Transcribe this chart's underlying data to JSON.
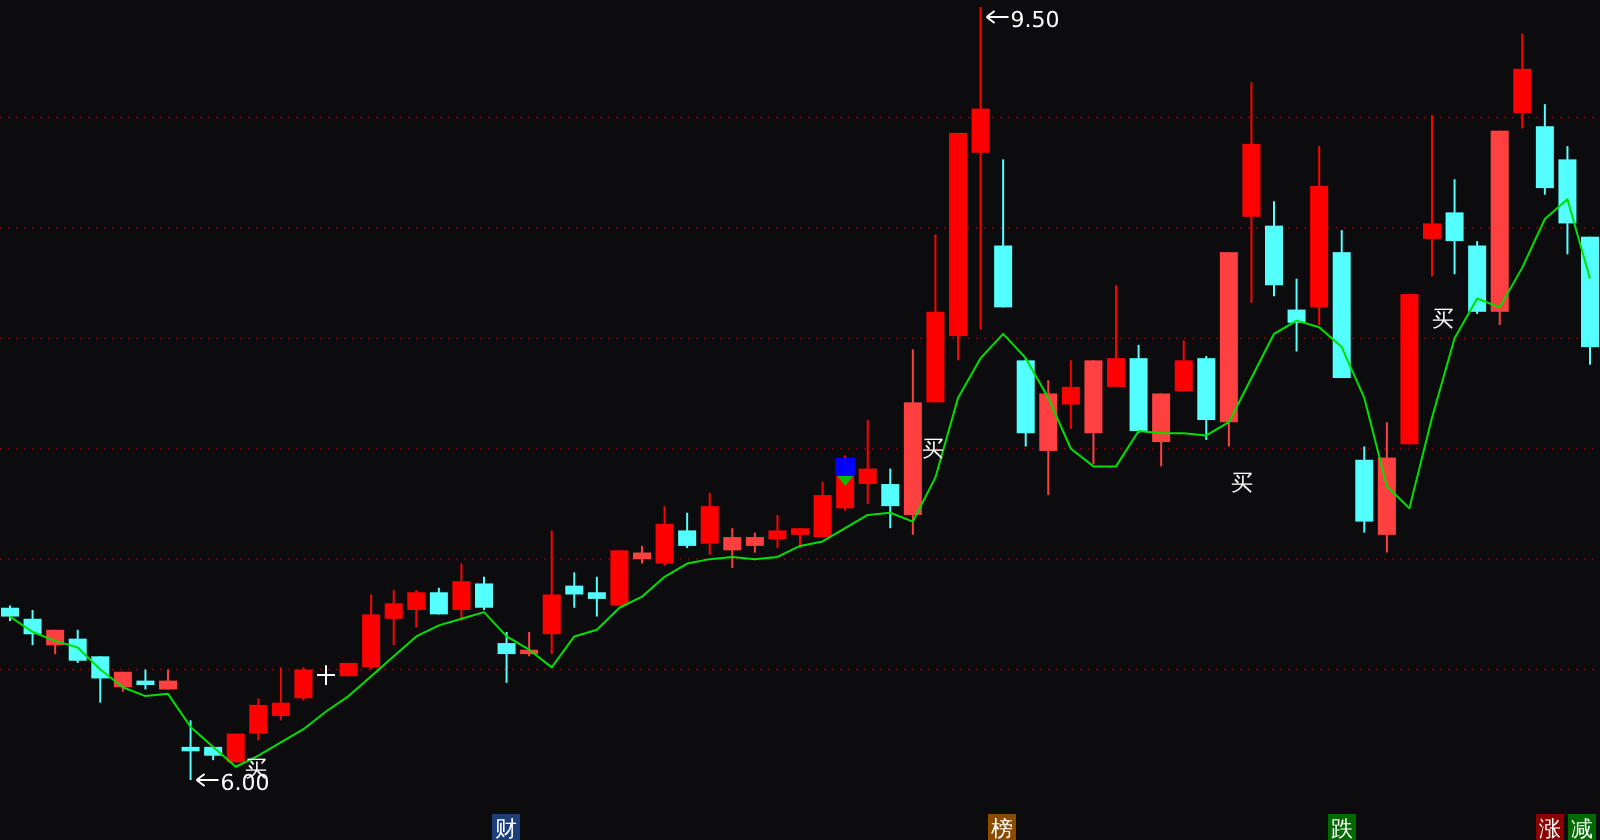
{
  "chart_data": {
    "type": "candlestick",
    "categories": [
      null,
      null,
      null,
      null,
      null,
      null,
      null,
      null,
      null,
      null,
      null,
      null,
      null,
      null,
      null,
      null,
      null,
      null,
      null,
      null,
      null,
      null,
      null,
      null,
      null,
      null,
      null,
      null,
      null,
      null,
      null,
      null,
      null,
      null,
      null,
      null,
      null,
      null,
      null,
      null,
      null,
      null,
      null,
      null,
      null,
      null,
      null,
      null,
      null,
      null,
      null,
      null,
      null,
      null,
      null,
      null,
      null,
      null,
      null,
      null,
      null,
      null,
      null,
      null,
      null,
      null,
      null,
      null,
      null,
      null,
      null
    ],
    "ohlc": [
      [
        6.78,
        6.79,
        6.72,
        6.74
      ],
      [
        6.73,
        6.77,
        6.61,
        6.66
      ],
      [
        6.61,
        6.68,
        6.57,
        6.68
      ],
      [
        6.64,
        6.68,
        6.53,
        6.54
      ],
      [
        6.56,
        6.56,
        6.35,
        6.46
      ],
      [
        6.42,
        6.49,
        6.4,
        6.49
      ],
      [
        6.45,
        6.5,
        6.41,
        6.43
      ],
      [
        6.41,
        6.5,
        6.41,
        6.45
      ],
      [
        6.15,
        6.27,
        6.0,
        6.13
      ],
      [
        6.15,
        6.15,
        6.09,
        6.11
      ],
      [
        6.08,
        6.21,
        6.08,
        6.21
      ],
      [
        6.21,
        6.37,
        6.18,
        6.34
      ],
      [
        6.29,
        6.51,
        6.27,
        6.35
      ],
      [
        6.37,
        6.51,
        6.36,
        6.5
      ],
      [
        6.48,
        6.52,
        6.43,
        6.48
      ],
      [
        6.47,
        6.53,
        6.47,
        6.53
      ],
      [
        6.51,
        6.84,
        6.5,
        6.75
      ],
      [
        6.73,
        6.86,
        6.61,
        6.8
      ],
      [
        6.77,
        6.86,
        6.69,
        6.85
      ],
      [
        6.85,
        6.87,
        6.75,
        6.75
      ],
      [
        6.77,
        6.98,
        6.72,
        6.9
      ],
      [
        6.89,
        6.92,
        6.77,
        6.78
      ],
      [
        6.62,
        6.67,
        6.44,
        6.57
      ],
      [
        6.57,
        6.67,
        6.56,
        6.59
      ],
      [
        6.66,
        7.13,
        6.57,
        6.84
      ],
      [
        6.88,
        6.94,
        6.78,
        6.84
      ],
      [
        6.85,
        6.92,
        6.74,
        6.82
      ],
      [
        6.79,
        7.04,
        6.79,
        7.04
      ],
      [
        7.0,
        7.06,
        6.98,
        7.03
      ],
      [
        6.98,
        7.24,
        6.97,
        7.16
      ],
      [
        7.13,
        7.21,
        7.05,
        7.06
      ],
      [
        7.07,
        7.3,
        7.02,
        7.24
      ],
      [
        7.04,
        7.14,
        6.96,
        7.1
      ],
      [
        7.06,
        7.12,
        7.03,
        7.1
      ],
      [
        7.09,
        7.2,
        7.05,
        7.13
      ],
      [
        7.11,
        7.14,
        7.05,
        7.14
      ],
      [
        7.1,
        7.35,
        7.1,
        7.29
      ],
      [
        7.23,
        7.47,
        7.22,
        7.39
      ],
      [
        7.34,
        7.63,
        7.25,
        7.41
      ],
      [
        7.34,
        7.41,
        7.14,
        7.24
      ],
      [
        7.2,
        7.95,
        7.11,
        7.71
      ],
      [
        7.71,
        8.47,
        7.71,
        8.12
      ],
      [
        8.01,
        8.93,
        7.9,
        8.93
      ],
      [
        8.84,
        9.5,
        8.04,
        9.04
      ],
      [
        8.42,
        8.81,
        8.14,
        8.14
      ],
      [
        7.9,
        7.91,
        7.51,
        7.57
      ],
      [
        7.49,
        7.81,
        7.29,
        7.75
      ],
      [
        7.7,
        7.9,
        7.59,
        7.78
      ],
      [
        7.57,
        7.9,
        7.43,
        7.9
      ],
      [
        7.78,
        8.24,
        7.78,
        7.91
      ],
      [
        7.91,
        7.97,
        7.57,
        7.58
      ],
      [
        7.53,
        7.75,
        7.42,
        7.75
      ],
      [
        7.76,
        7.99,
        7.76,
        7.9
      ],
      [
        7.91,
        7.92,
        7.54,
        7.63
      ],
      [
        7.62,
        8.39,
        7.51,
        8.39
      ],
      [
        8.55,
        9.16,
        8.16,
        8.88
      ],
      [
        8.51,
        8.62,
        8.19,
        8.24
      ],
      [
        8.13,
        8.27,
        7.94,
        8.07
      ],
      [
        8.14,
        8.87,
        8.06,
        8.69
      ],
      [
        8.39,
        8.49,
        7.82,
        7.82
      ],
      [
        7.45,
        7.51,
        7.12,
        7.17
      ],
      [
        7.11,
        7.62,
        7.03,
        7.46
      ],
      [
        7.52,
        8.2,
        7.52,
        8.2
      ],
      [
        8.45,
        9.01,
        8.28,
        8.52
      ],
      [
        8.57,
        8.72,
        8.29,
        8.44
      ],
      [
        8.42,
        8.44,
        8.11,
        8.12
      ],
      [
        8.12,
        8.94,
        8.06,
        8.94
      ],
      [
        9.02,
        9.38,
        8.95,
        9.22
      ],
      [
        8.96,
        9.06,
        8.65,
        8.68
      ],
      [
        8.81,
        8.87,
        8.38,
        8.52
      ],
      [
        8.46,
        8.46,
        7.88,
        7.96
      ]
    ],
    "colors": [
      "#54ffff",
      "#54ffff",
      "#ff4040",
      "#54ffff",
      "#54ffff",
      "#ff4040",
      "#54ffff",
      "#ff4040",
      "#54ffff",
      "#54ffff",
      "#ff0000",
      "#ff0000",
      "#ff0000",
      "#ff0000",
      "#ffffff",
      "#ff0000",
      "#ff0000",
      "#ff0000",
      "#ff0000",
      "#54ffff",
      "#ff0000",
      "#54ffff",
      "#54ffff",
      "#ff4040",
      "#ff0000",
      "#54ffff",
      "#54ffff",
      "#ff0000",
      "#ff4040",
      "#ff0000",
      "#54ffff",
      "#ff0000",
      "#ff4040",
      "#ff4040",
      "#ff0000",
      "#ff0000",
      "#ff0000",
      "#ff0000",
      "#ff0000",
      "#54ffff",
      "#ff4040",
      "#ff0000",
      "#ff0000",
      "#ff0000",
      "#54ffff",
      "#54ffff",
      "#ff4040",
      "#ff0000",
      "#ff4040",
      "#ff0000",
      "#54ffff",
      "#ff4040",
      "#ff0000",
      "#54ffff",
      "#ff4040",
      "#ff0000",
      "#54ffff",
      "#54ffff",
      "#ff0000",
      "#54ffff",
      "#54ffff",
      "#ff4040",
      "#ff0000",
      "#ff0000",
      "#54ffff",
      "#54ffff",
      "#ff4040",
      "#ff0000",
      "#54ffff",
      "#54ffff",
      "#54ffff"
    ],
    "series": [
      {
        "type": "line",
        "color": "#00e000",
        "values": [
          6.74,
          6.67,
          6.63,
          6.6,
          6.5,
          6.42,
          6.38,
          6.39,
          6.24,
          6.15,
          6.06,
          6.11,
          6.17,
          6.23,
          6.31,
          6.38,
          6.47,
          6.56,
          6.65,
          6.7,
          6.73,
          6.76,
          6.65,
          6.59,
          6.51,
          6.65,
          6.68,
          6.78,
          6.83,
          6.92,
          6.98,
          7.0,
          7.01,
          7.0,
          7.01,
          7.06,
          7.08,
          7.14,
          7.2,
          7.21,
          7.17,
          7.37,
          7.73,
          7.91,
          8.02,
          7.91,
          7.73,
          7.5,
          7.42,
          7.42,
          7.58,
          7.57,
          7.57,
          7.56,
          7.62,
          7.82,
          8.02,
          8.08,
          8.05,
          7.96,
          7.73,
          7.33,
          7.23,
          7.64,
          8.0,
          8.18,
          8.14,
          8.32,
          8.54,
          8.63,
          8.27
        ]
      }
    ],
    "ref_lines": [
      {
        "axis": "y",
        "value": 6.5,
        "color": "#7a0000",
        "line_style": "dotted"
      },
      {
        "axis": "y",
        "value": 7.0,
        "color": "#7a0000",
        "line_style": "dotted"
      },
      {
        "axis": "y",
        "value": 7.5,
        "color": "#7a0000",
        "line_style": "dotted"
      },
      {
        "axis": "y",
        "value": 8.0,
        "color": "#7a0000",
        "line_style": "dotted"
      },
      {
        "axis": "y",
        "value": 8.5,
        "color": "#7a0000",
        "line_style": "dotted"
      },
      {
        "axis": "y",
        "value": 9.0,
        "color": "#7a0000",
        "line_style": "dotted"
      }
    ],
    "annotations": [
      "9.50",
      "6.00",
      "买",
      "买",
      "买",
      "买",
      "财",
      "榜",
      "跌",
      "涨",
      "减"
    ]
  }
}
